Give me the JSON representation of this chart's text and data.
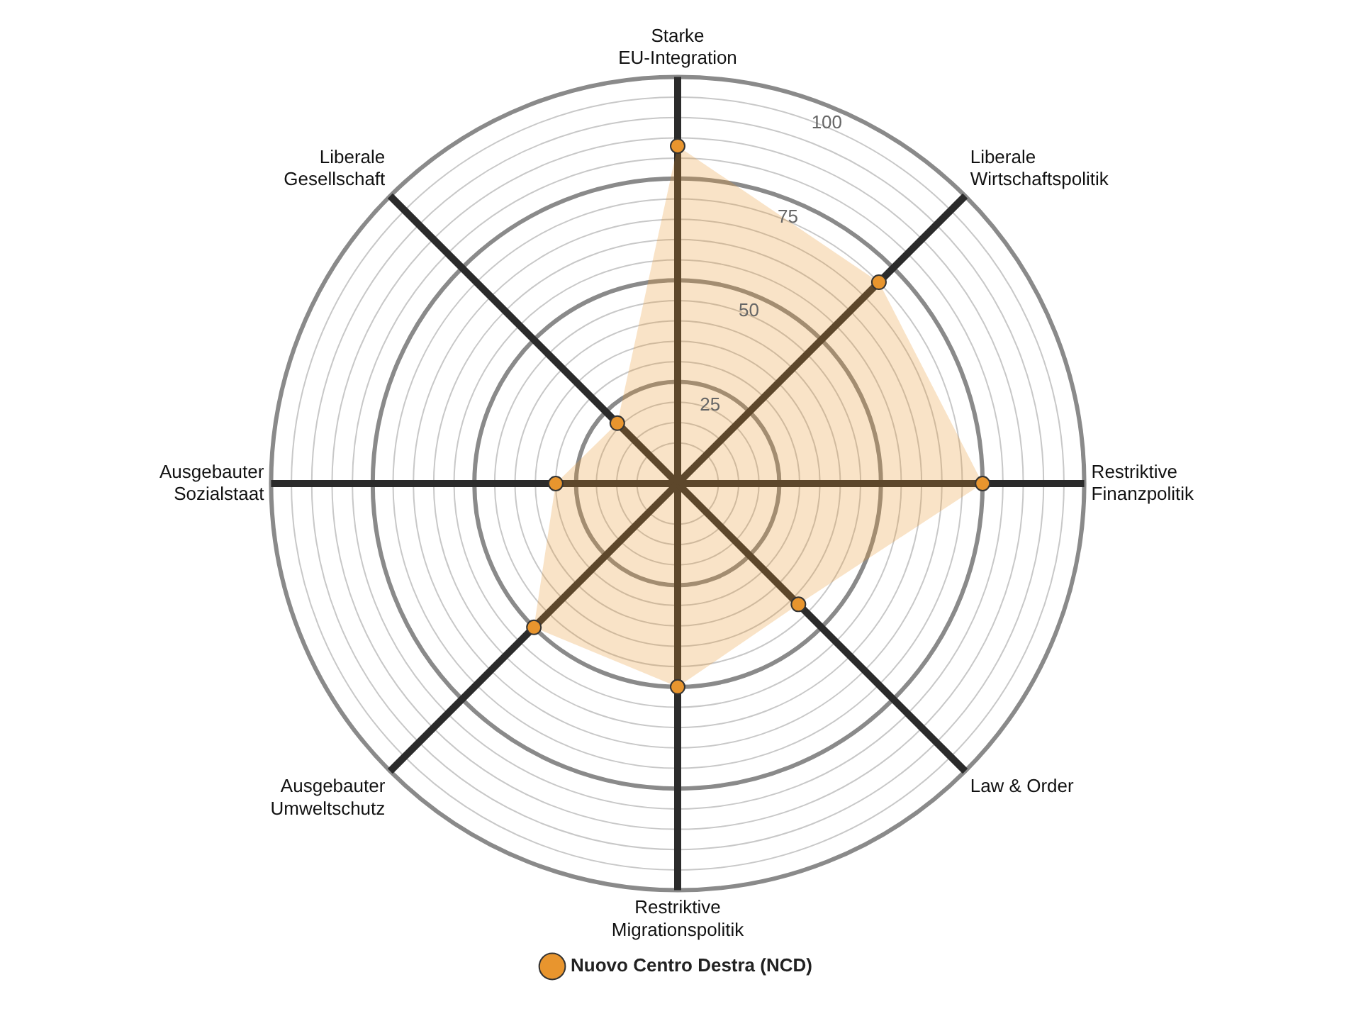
{
  "chart_data": {
    "type": "radar",
    "categories": [
      "Starke\nEU-Integration",
      "Liberale\nWirtschaftspolitik",
      "Restriktive\nFinanzpolitik",
      "Law & Order",
      "Restriktive\nMigrationspolitik",
      "Ausgebauter\nUmweltschutz",
      "Ausgebauter\nSozialstaat",
      "Liberale\nGesellschaft"
    ],
    "series": [
      {
        "name": "Nuovo Centro Destra (NCD)",
        "color": "#e8952e",
        "values": [
          83,
          70,
          75,
          42,
          50,
          50,
          30,
          21
        ]
      }
    ],
    "ylim": [
      0,
      100
    ],
    "yticks": [
      25,
      50,
      75,
      100
    ],
    "grid": true,
    "legend": "bottom",
    "marker": "circle"
  }
}
